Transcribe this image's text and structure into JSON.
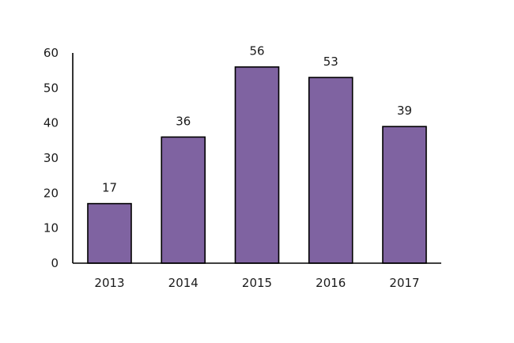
{
  "chart_data": {
    "type": "bar",
    "categories": [
      "2013",
      "2014",
      "2015",
      "2016",
      "2017"
    ],
    "values": [
      17,
      36,
      56,
      53,
      39
    ],
    "data_labels": [
      "17",
      "36",
      "56",
      "53",
      "39"
    ],
    "title": "",
    "xlabel": "",
    "ylabel": "",
    "ylim": [
      0,
      60
    ],
    "yticks": [
      0,
      10,
      20,
      30,
      40,
      50,
      60
    ],
    "ytick_labels": [
      "0",
      "10",
      "20",
      "30",
      "40",
      "50",
      "60"
    ],
    "grid": false,
    "legend": "none",
    "colors": {
      "bar_fill": "#7F63A1",
      "bar_stroke": "#000000",
      "axis": "#000000"
    }
  }
}
